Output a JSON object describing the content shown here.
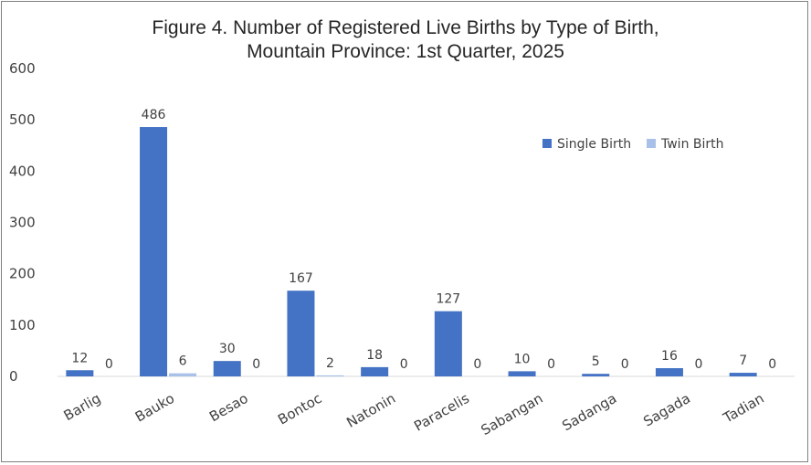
{
  "chart_data": {
    "type": "bar",
    "title_line1": "Figure 4. Number of Registered Live Births by Type of Birth,",
    "title_line2": "Mountain Province: 1st Quarter, 2025",
    "categories": [
      "Barlig",
      "Bauko",
      "Besao",
      "Bontoc",
      "Natonin",
      "Paracelis",
      "Sabangan",
      "Sadanga",
      "Sagada",
      "Tadian"
    ],
    "series": [
      {
        "name": "Single Birth",
        "values": [
          12,
          486,
          30,
          167,
          18,
          127,
          10,
          5,
          16,
          7
        ],
        "color": "#4472c4"
      },
      {
        "name": "Twin Birth",
        "values": [
          0,
          6,
          0,
          2,
          0,
          0,
          0,
          0,
          0,
          0
        ],
        "color": "#a9c0e8"
      }
    ],
    "ylim": [
      0,
      600
    ],
    "yticks": [
      0,
      100,
      200,
      300,
      400,
      500,
      600
    ],
    "xlabel": "",
    "ylabel": "",
    "grid": false,
    "legend_position": "top-right",
    "data_labels": true
  }
}
